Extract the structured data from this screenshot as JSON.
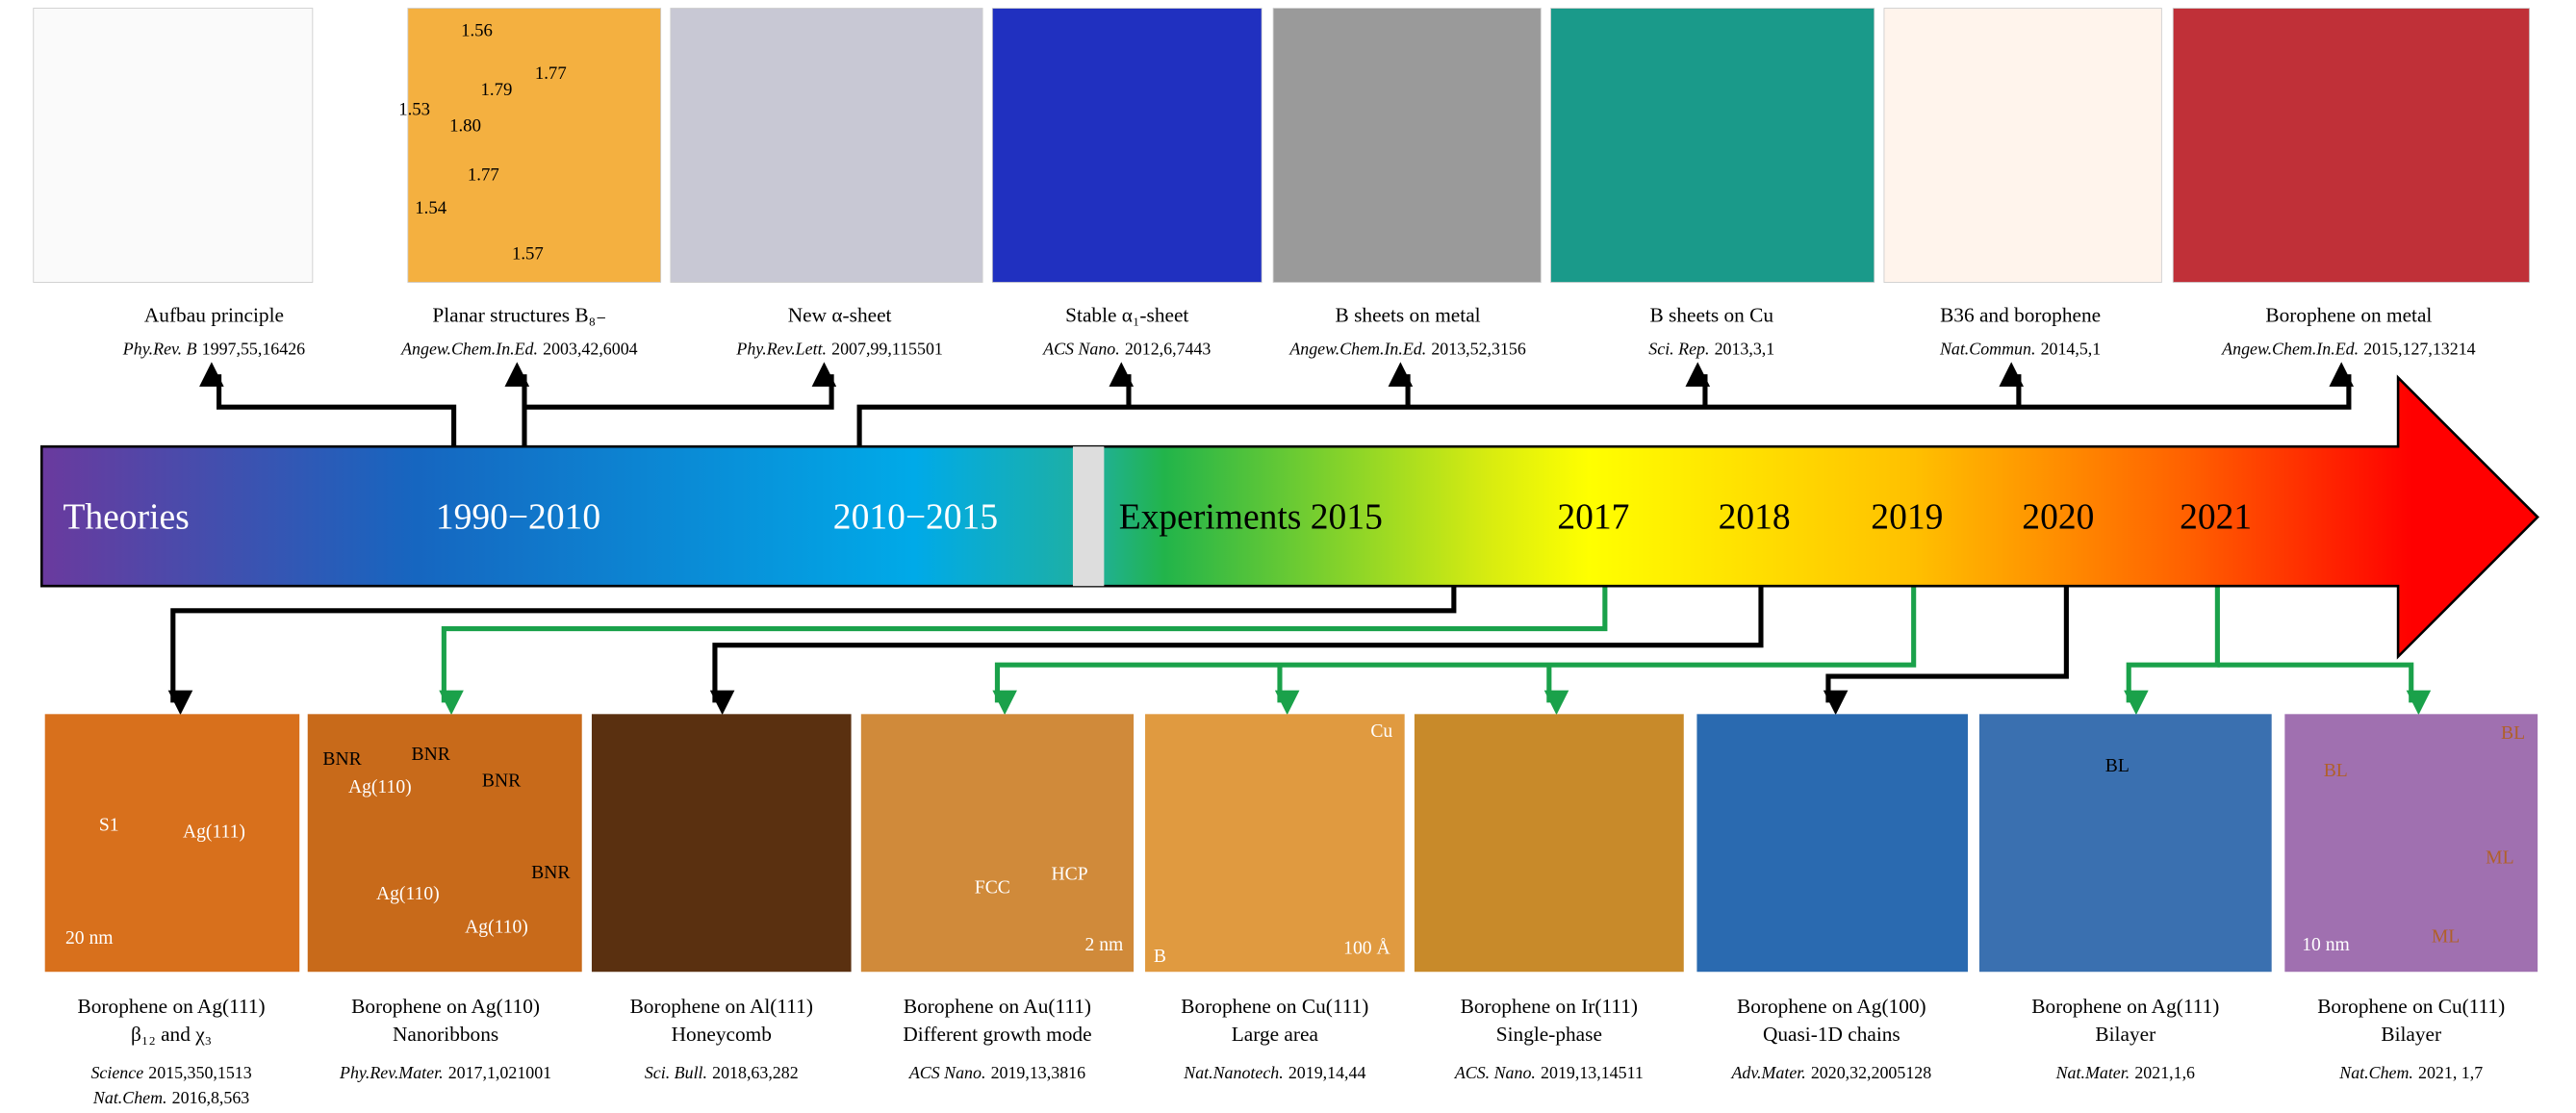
{
  "timeline": {
    "labels": [
      "Theories",
      "1990−2010",
      "2010−2015",
      "Experiments 2015",
      "2017",
      "2018",
      "2019",
      "2020",
      "2021"
    ]
  },
  "top_panels": [
    {
      "title": "Aufbau principle",
      "citation": [
        {
          "journal": "Phy.Rev. B",
          "details": "1997,55,16426"
        }
      ]
    },
    {
      "title": "Planar structures B₈₋",
      "citation": [
        {
          "journal": "Angew.Chem.In.Ed.",
          "details": "2003,42,6004"
        }
      ],
      "labels": [
        "1.56",
        "1.77",
        "1.79",
        "1.53",
        "1.80",
        "1.77",
        "1.54",
        "1.57"
      ]
    },
    {
      "title": "New α-sheet",
      "citation": [
        {
          "journal": "Phy.Rev.Lett.",
          "details": "2007,99,115501"
        }
      ]
    },
    {
      "title": "Stable α₁-sheet",
      "citation": [
        {
          "journal": "ACS Nano.",
          "details": "2012,6,7443"
        }
      ]
    },
    {
      "title": "B sheets on metal",
      "citation": [
        {
          "journal": "Angew.Chem.In.Ed.",
          "details": "2013,52,3156"
        }
      ]
    },
    {
      "title": "B sheets on Cu",
      "citation": [
        {
          "journal": "Sci. Rep.",
          "details": "2013,3,1"
        }
      ]
    },
    {
      "title": "B36 and borophene",
      "citation": [
        {
          "journal": "Nat.Commun.",
          "details": "2014,5,1"
        }
      ]
    },
    {
      "title": "Borophene on metal",
      "citation": [
        {
          "journal": "Angew.Chem.In.Ed.",
          "details": "2015,127,13214"
        }
      ]
    }
  ],
  "bottom_panels": [
    {
      "title": "Borophene on Ag(111)",
      "subtitle": "β₁₂ and χ₃",
      "citation": [
        {
          "journal": "Science",
          "details": "2015,350,1513"
        },
        {
          "journal": "Nat.Chem.",
          "details": "2016,8,563"
        }
      ],
      "labels": [
        "S1",
        "Ag(111)",
        "20 nm"
      ]
    },
    {
      "title": "Borophene on Ag(110)",
      "subtitle": "Nanoribbons",
      "citation": [
        {
          "journal": "Phy.Rev.Mater.",
          "details": "2017,1,021001"
        }
      ],
      "labels": [
        "BNR",
        "BNR",
        "BNR",
        "BNR",
        "Ag(110)",
        "Ag(110)",
        "Ag(110)"
      ]
    },
    {
      "title": "Borophene on Al(111)",
      "subtitle": "Honeycomb",
      "citation": [
        {
          "journal": "Sci. Bull.",
          "details": "2018,63,282"
        }
      ]
    },
    {
      "title": "Borophene on Au(111)",
      "subtitle": "Different growth mode",
      "citation": [
        {
          "journal": "ACS Nano.",
          "details": "2019,13,3816"
        }
      ],
      "labels": [
        "FCC",
        "HCP",
        "2 nm"
      ]
    },
    {
      "title": "Borophene on Cu(111)",
      "subtitle": "Large area",
      "citation": [
        {
          "journal": "Nat.Nanotech.",
          "details": "2019,14,44"
        }
      ],
      "labels": [
        "Cu",
        "B",
        "100 Å"
      ]
    },
    {
      "title": "Borophene on Ir(111)",
      "subtitle": "Single-phase",
      "citation": [
        {
          "journal": "ACS. Nano.",
          "details": "2019,13,14511"
        }
      ]
    },
    {
      "title": "Borophene on Ag(100)",
      "subtitle": "Quasi-1D chains",
      "citation": [
        {
          "journal": "Adv.Mater.",
          "details": "2020,32,2005128"
        }
      ]
    },
    {
      "title": "Borophene on Ag(111)",
      "subtitle": "Bilayer",
      "citation": [
        {
          "journal": "Nat.Mater.",
          "details": "2021,1,6"
        }
      ],
      "labels": [
        "BL"
      ]
    },
    {
      "title": "Borophene on Cu(111)",
      "subtitle": "Bilayer",
      "citation": [
        {
          "journal": "Nat.Chem.",
          "details": "2021, 1,7"
        }
      ],
      "labels": [
        "BL",
        "BL",
        "ML",
        "ML",
        "10 nm"
      ]
    }
  ]
}
